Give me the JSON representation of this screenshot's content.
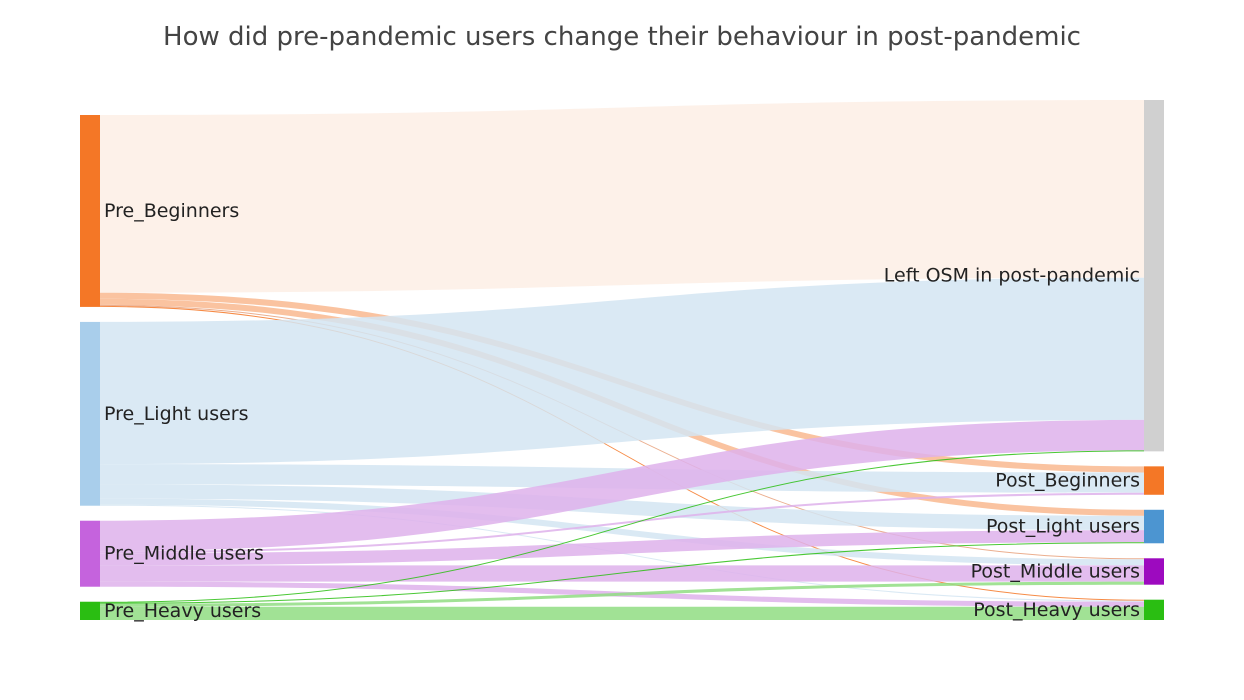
{
  "chart_data": {
    "type": "sankey",
    "title": "How did pre-pandemic users change their behaviour in post-pandemic",
    "sources": [
      {
        "name": "Pre_Beginners",
        "color": "#F47726"
      },
      {
        "name": "Pre_Light users",
        "color": "#A9CEEB"
      },
      {
        "name": "Pre_Middle users",
        "color": "#C563DD"
      },
      {
        "name": "Pre_Heavy users",
        "color": "#2ABE12"
      }
    ],
    "targets": [
      {
        "name": "Left OSM in post-pandemic",
        "color": "#D0D0D0"
      },
      {
        "name": "Post_Beginners",
        "color": "#F47726"
      },
      {
        "name": "Post_Light users",
        "color": "#4C95D1"
      },
      {
        "name": "Post_Middle users",
        "color": "#9D0ABF"
      },
      {
        "name": "Post_Heavy users",
        "color": "#2ABE12"
      }
    ],
    "link_colors": {
      "Pre_Beginners": "#FDEFE5",
      "Pre_Light users": "#D4E5F2",
      "Pre_Middle users": "#DEB1EB",
      "Pre_Heavy users": "#90DD82"
    },
    "links": [
      {
        "source": "Pre_Beginners",
        "target": "Left OSM in post-pandemic",
        "value": 1750,
        "color": "#FDEFE5"
      },
      {
        "source": "Pre_Beginners",
        "target": "Post_Beginners",
        "value": 60,
        "color": "#F9B88F"
      },
      {
        "source": "Pre_Beginners",
        "target": "Post_Light users",
        "value": 60,
        "color": "#F9B88F"
      },
      {
        "source": "Pre_Beginners",
        "target": "Post_Middle users",
        "value": 10,
        "color": "#E8A07A"
      },
      {
        "source": "Pre_Beginners",
        "target": "Post_Heavy users",
        "value": 10,
        "color": "#F47726"
      },
      {
        "source": "Pre_Light users",
        "target": "Left OSM in post-pandemic",
        "value": 1400,
        "color": "#D4E5F2"
      },
      {
        "source": "Pre_Light users",
        "target": "Post_Beginners",
        "value": 200,
        "color": "#D4E5F2"
      },
      {
        "source": "Pre_Light users",
        "target": "Post_Light users",
        "value": 140,
        "color": "#D4E5F2"
      },
      {
        "source": "Pre_Light users",
        "target": "Post_Middle users",
        "value": 60,
        "color": "#D4E5F2"
      },
      {
        "source": "Pre_Light users",
        "target": "Post_Heavy users",
        "value": 10,
        "color": "#D4E5F2"
      },
      {
        "source": "Pre_Middle users",
        "target": "Left OSM in post-pandemic",
        "value": 300,
        "color": "#DEB1EB"
      },
      {
        "source": "Pre_Middle users",
        "target": "Post_Beginners",
        "value": 20,
        "color": "#DEB1EB"
      },
      {
        "source": "Pre_Middle users",
        "target": "Post_Light users",
        "value": 120,
        "color": "#DEB1EB"
      },
      {
        "source": "Pre_Middle users",
        "target": "Post_Middle users",
        "value": 160,
        "color": "#DEB1EB"
      },
      {
        "source": "Pre_Middle users",
        "target": "Post_Heavy users",
        "value": 50,
        "color": "#DEB1EB"
      },
      {
        "source": "Pre_Heavy users",
        "target": "Left OSM in post-pandemic",
        "value": 10,
        "color": "#2ABE12"
      },
      {
        "source": "Pre_Heavy users",
        "target": "Post_Light users",
        "value": 10,
        "color": "#2ABE12"
      },
      {
        "source": "Pre_Heavy users",
        "target": "Post_Middle users",
        "value": 30,
        "color": "#90DD82"
      },
      {
        "source": "Pre_Heavy users",
        "target": "Post_Heavy users",
        "value": 130,
        "color": "#90DD82"
      }
    ]
  }
}
